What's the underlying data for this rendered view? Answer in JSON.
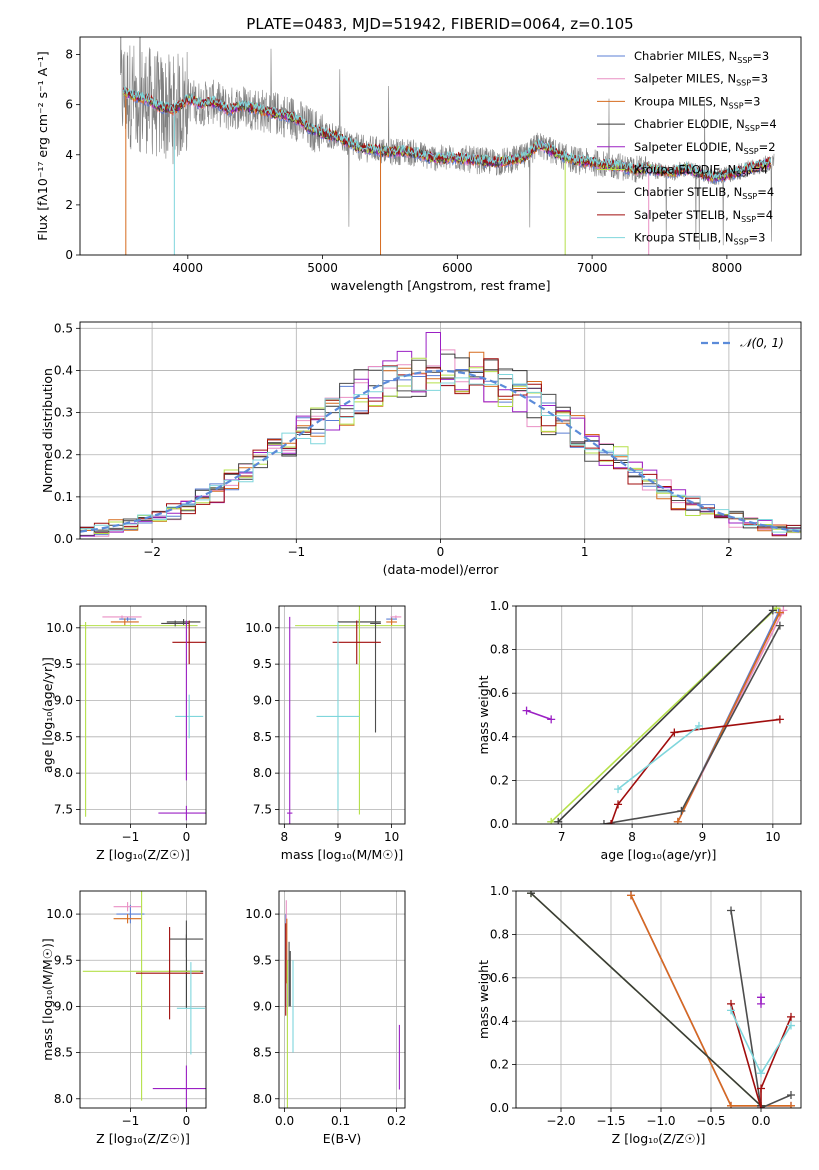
{
  "figure": {
    "title": "PLATE=0483, MJD=51942, FIBERID=0064, z=0.105"
  },
  "series_styles": [
    {
      "name": "Chabrier MILES",
      "nssp": "3",
      "color": "#5b7fd4"
    },
    {
      "name": "Salpeter MILES",
      "nssp": "3",
      "color": "#e98fc4"
    },
    {
      "name": "Kroupa MILES",
      "nssp": "3",
      "color": "#d66b1f"
    },
    {
      "name": "Chabrier ELODIE",
      "nssp": "4",
      "color": "#3a3a3a"
    },
    {
      "name": "Salpeter ELODIE",
      "nssp": "2",
      "color": "#9b20c4"
    },
    {
      "name": "Kroupa ELODIE",
      "nssp": "4",
      "color": "#b5e04a"
    },
    {
      "name": "Chabrier STELIB",
      "nssp": "4",
      "color": "#4d4d4d"
    },
    {
      "name": "Salpeter STELIB",
      "nssp": "4",
      "color": "#a00d0d"
    },
    {
      "name": "Kroupa STELIB",
      "nssp": "3",
      "color": "#7fd6dc"
    }
  ],
  "chart_data": [
    {
      "id": "spectrum",
      "type": "line",
      "xlabel": "wavelength [Angstrom, rest frame]",
      "ylabel": "Flux [fλ10⁻¹⁷ erg cm⁻² s⁻¹ A⁻¹]",
      "xlim": [
        3200,
        8550
      ],
      "ylim": [
        0,
        8.7
      ],
      "xticks": [
        4000,
        5000,
        6000,
        7000,
        8000
      ],
      "yticks": [
        0,
        2,
        4,
        6,
        8
      ],
      "grid": false,
      "legend": "top-right",
      "data_color": "#808080",
      "data_x_range": [
        3500,
        8350
      ],
      "model_shape": {
        "x": [
          3520,
          3600,
          3700,
          3800,
          3900,
          4000,
          4100,
          4200,
          4300,
          4400,
          4500,
          4600,
          4700,
          4800,
          4900,
          5000,
          5100,
          5200,
          5300,
          5400,
          5500,
          5600,
          5700,
          5800,
          5900,
          6000,
          6100,
          6200,
          6300,
          6400,
          6500,
          6600,
          6650,
          6700,
          6800,
          6900,
          7000,
          7100,
          7200,
          7300,
          7400,
          7500,
          7600,
          7700,
          7800,
          7900,
          8000,
          8100,
          8200,
          8330
        ],
        "y": [
          6.5,
          6.35,
          6.2,
          5.9,
          5.8,
          6.2,
          6.05,
          6.1,
          5.8,
          5.95,
          5.85,
          5.7,
          5.6,
          5.45,
          5.05,
          4.85,
          4.75,
          4.45,
          4.25,
          4.2,
          4.1,
          4.15,
          4.05,
          3.9,
          3.85,
          3.9,
          3.8,
          3.75,
          3.7,
          3.8,
          3.9,
          4.4,
          4.3,
          4.15,
          3.9,
          3.75,
          3.7,
          3.6,
          3.55,
          3.4,
          3.45,
          3.35,
          3.3,
          3.45,
          3.25,
          3.1,
          3.2,
          3.35,
          3.5,
          3.7
        ]
      }
    },
    {
      "id": "residuals",
      "type": "histogram",
      "xlabel": "(data-model)/error",
      "ylabel": "Normed distribution",
      "xlim": [
        -2.5,
        2.5
      ],
      "ylim": [
        0,
        0.515
      ],
      "xticks": [
        -2,
        -1,
        0,
        1,
        2
      ],
      "yticks": [
        0.0,
        0.1,
        0.2,
        0.3,
        0.4,
        0.5
      ],
      "grid": true,
      "legend": "top-right",
      "reference_curve": {
        "name": "𝒩(0, 1)",
        "mean": 0,
        "sigma": 1,
        "color": "#5b8bd9"
      },
      "bin_edges_start": -2.5,
      "bin_width": 0.1,
      "base_hist": [
        0.03,
        0.04,
        0.05,
        0.07,
        0.08,
        0.07,
        0.09,
        0.09,
        0.1,
        0.12,
        0.12,
        0.15,
        0.17,
        0.18,
        0.19,
        0.2,
        0.21,
        0.24,
        0.26,
        0.29,
        0.32,
        0.35,
        0.3,
        0.37,
        0.39,
        0.38,
        0.36,
        0.39,
        0.41,
        0.4,
        0.38,
        0.36,
        0.37,
        0.35,
        0.34,
        0.37,
        0.34,
        0.33,
        0.31,
        0.3,
        0.26,
        0.22,
        0.21,
        0.19,
        0.17,
        0.13,
        0.14,
        0.1,
        0.09,
        0.08,
        0.09,
        0.07,
        0.06,
        0.05,
        0.04,
        0.03,
        0.03,
        0.02,
        0.02,
        0.01,
        0.02,
        0.01,
        0.01,
        0.01,
        0.01,
        0.01,
        0.01,
        0.01,
        0.01,
        0.01
      ],
      "peak_bin_value": 0.49
    },
    {
      "id": "age_vs_Z",
      "type": "errorbar",
      "xlabel": "Z [log₁₀(Z/Z☉)]",
      "ylabel": "age  [log₁₀(age/yr)]",
      "xlim": [
        -1.9,
        0.35
      ],
      "ylim": [
        7.3,
        10.3
      ],
      "xticks": [
        -1,
        0
      ],
      "yticks": [
        7.5,
        8.0,
        8.5,
        9.0,
        9.5,
        10.0
      ],
      "grid": true,
      "points": [
        {
          "s": 0,
          "x": -1.05,
          "y": 10.12,
          "dx": 0.15,
          "dy": 0.03
        },
        {
          "s": 1,
          "x": -1.15,
          "y": 10.15,
          "dx": 0.35,
          "dy": 0.02
        },
        {
          "s": 2,
          "x": -1.1,
          "y": 10.08,
          "dx": 0.25,
          "dy": 0.05
        },
        {
          "s": 3,
          "x": -0.05,
          "y": 10.08,
          "dx": 0.3,
          "dy": 0.04
        },
        {
          "s": 4,
          "x": 0.0,
          "y": 7.45,
          "dx": 0.5,
          "dy": 0.1
        },
        {
          "s": 5,
          "x": -1.8,
          "y": 10.03,
          "dx": 2.0,
          "dy": 0.05
        },
        {
          "s": 6,
          "x": -0.2,
          "y": 10.06,
          "dx": 0.25,
          "dy": 0.04
        },
        {
          "s": 7,
          "x": 0.05,
          "y": 9.8,
          "dx": 0.3,
          "dy": 0.3
        },
        {
          "s": 8,
          "x": 0.05,
          "y": 8.78,
          "dx": 0.25,
          "dy": 0.3
        },
        {
          "s": 4,
          "x": 0.0,
          "y": 9.0,
          "dx": 0.0,
          "dy": 1.1
        },
        {
          "s": 5,
          "x": -1.8,
          "y": 8.7,
          "dx": 0.0,
          "dy": 1.3
        }
      ]
    },
    {
      "id": "age_vs_mass",
      "type": "errorbar",
      "xlabel": "mass [log₁₀(M/M☉)]",
      "ylabel": "",
      "xlim": [
        7.9,
        10.25
      ],
      "ylim": [
        7.3,
        10.3
      ],
      "xticks": [
        8,
        9,
        10
      ],
      "yticks": [
        7.5,
        8.0,
        8.5,
        9.0,
        9.5,
        10.0
      ],
      "grid": true,
      "points": [
        {
          "s": 0,
          "x": 10.0,
          "y": 10.12,
          "dx": 0.1,
          "dy": 0.03
        },
        {
          "s": 1,
          "x": 10.08,
          "y": 10.15,
          "dx": 0.1,
          "dy": 0.02
        },
        {
          "s": 2,
          "x": 10.0,
          "y": 10.08,
          "dx": 0.1,
          "dy": 0.05
        },
        {
          "s": 3,
          "x": 9.4,
          "y": 10.08,
          "dx": 0.4,
          "dy": 0.04
        },
        {
          "s": 4,
          "x": 8.1,
          "y": 7.45,
          "dx": 0.05,
          "dy": 2.7
        },
        {
          "s": 5,
          "x": 9.4,
          "y": 10.03,
          "dx": 1.2,
          "dy": 2.6
        },
        {
          "s": 6,
          "x": 9.7,
          "y": 10.06,
          "dx": 0.1,
          "dy": 1.5
        },
        {
          "s": 7,
          "x": 9.35,
          "y": 9.8,
          "dx": 0.45,
          "dy": 0.3
        },
        {
          "s": 8,
          "x": 9.0,
          "y": 8.78,
          "dx": 0.4,
          "dy": 1.3
        }
      ]
    },
    {
      "id": "massweight_vs_age",
      "type": "line",
      "xlabel": "age  [log₁₀(age/yr)]",
      "ylabel": "mass weight",
      "xlim": [
        6.35,
        10.4
      ],
      "ylim": [
        0,
        1
      ],
      "xticks": [
        7,
        8,
        9,
        10
      ],
      "yticks": [
        0.0,
        0.2,
        0.4,
        0.6,
        0.8,
        1.0
      ],
      "grid": true,
      "series": [
        {
          "s": 0,
          "x": [
            8.65,
            10.08
          ],
          "y": [
            0.01,
            0.97
          ]
        },
        {
          "s": 1,
          "x": [
            8.65,
            10.15
          ],
          "y": [
            0.01,
            0.98
          ]
        },
        {
          "s": 2,
          "x": [
            8.65,
            10.1
          ],
          "y": [
            0.01,
            0.97
          ]
        },
        {
          "s": 6,
          "x": [
            7.6,
            8.7,
            10.1
          ],
          "y": [
            0.0,
            0.06,
            0.91
          ]
        },
        {
          "s": 4,
          "x": [
            6.5,
            6.85
          ],
          "y": [
            0.52,
            0.48
          ]
        },
        {
          "s": 5,
          "x": [
            6.85,
            10.05
          ],
          "y": [
            0.01,
            0.99
          ]
        },
        {
          "s": 3,
          "x": [
            6.95,
            10.0
          ],
          "y": [
            0.01,
            0.98
          ]
        },
        {
          "s": 7,
          "x": [
            7.7,
            7.8,
            8.6,
            10.1
          ],
          "y": [
            0.0,
            0.09,
            0.42,
            0.48
          ]
        },
        {
          "s": 8,
          "x": [
            7.8,
            8.95
          ],
          "y": [
            0.16,
            0.45
          ]
        }
      ]
    },
    {
      "id": "mass_vs_Z",
      "type": "errorbar",
      "xlabel": "Z [log₁₀(Z/Z☉)]",
      "ylabel": "mass [log₁₀(M/M☉)]",
      "xlim": [
        -1.9,
        0.35
      ],
      "ylim": [
        7.9,
        10.25
      ],
      "xticks": [
        -1,
        0
      ],
      "yticks": [
        8.0,
        8.5,
        9.0,
        9.5,
        10.0
      ],
      "grid": true,
      "points": [
        {
          "s": 0,
          "x": -1.0,
          "y": 10.0,
          "dx": 0.25,
          "dy": 0.1
        },
        {
          "s": 1,
          "x": -1.05,
          "y": 10.08,
          "dx": 0.25,
          "dy": 0.05
        },
        {
          "s": 2,
          "x": -1.05,
          "y": 9.95,
          "dx": 0.25,
          "dy": 0.05
        },
        {
          "s": 3,
          "x": 0.0,
          "y": 9.38,
          "dx": 0.3,
          "dy": 0.4
        },
        {
          "s": 4,
          "x": 0.0,
          "y": 8.11,
          "dx": 0.6,
          "dy": 0.25
        },
        {
          "s": 5,
          "x": -0.8,
          "y": 9.38,
          "dx": 1.05,
          "dy": 1.4
        },
        {
          "s": 6,
          "x": 0.0,
          "y": 9.73,
          "dx": 0.3,
          "dy": 0.2
        },
        {
          "s": 7,
          "x": -0.3,
          "y": 9.36,
          "dx": 0.6,
          "dy": 0.5
        },
        {
          "s": 8,
          "x": 0.08,
          "y": 8.98,
          "dx": 0.25,
          "dy": 0.5
        }
      ]
    },
    {
      "id": "mass_vs_EBV",
      "type": "errorbar",
      "xlabel": "E(B-V)",
      "ylabel": "",
      "xlim": [
        -0.01,
        0.215
      ],
      "ylim": [
        7.9,
        10.25
      ],
      "xticks": [
        0.0,
        0.1,
        0.2
      ],
      "yticks": [
        8.0,
        8.5,
        9.0,
        9.5,
        10.0
      ],
      "grid": true,
      "points": [
        {
          "s": 0,
          "x": 0.002,
          "y": 9.5,
          "dx": 0.0,
          "dy": 0.5
        },
        {
          "s": 1,
          "x": 0.003,
          "y": 9.9,
          "dx": 0.0,
          "dy": 0.25
        },
        {
          "s": 2,
          "x": 0.004,
          "y": 9.6,
          "dx": 0.0,
          "dy": 0.35
        },
        {
          "s": 3,
          "x": 0.01,
          "y": 9.3,
          "dx": 0.0,
          "dy": 0.3
        },
        {
          "s": 4,
          "x": 0.205,
          "y": 8.45,
          "dx": 0.0,
          "dy": 0.35
        },
        {
          "s": 5,
          "x": 0.005,
          "y": 8.7,
          "dx": 0.0,
          "dy": 0.8
        },
        {
          "s": 6,
          "x": 0.008,
          "y": 9.35,
          "dx": 0.0,
          "dy": 0.35
        },
        {
          "s": 7,
          "x": 0.002,
          "y": 9.4,
          "dx": 0.0,
          "dy": 0.5
        },
        {
          "s": 8,
          "x": 0.015,
          "y": 9.0,
          "dx": 0.0,
          "dy": 0.5
        }
      ]
    },
    {
      "id": "massweight_vs_Z",
      "type": "line",
      "xlabel": "Z [log₁₀(Z/Z☉)]",
      "ylabel": "mass weight",
      "xlim": [
        -2.45,
        0.4
      ],
      "ylim": [
        0,
        1
      ],
      "xticks": [
        -2.0,
        -1.5,
        -1.0,
        -0.5,
        0.0
      ],
      "yticks": [
        0.0,
        0.2,
        0.4,
        0.6,
        0.8,
        1.0
      ],
      "grid": true,
      "series": [
        {
          "s": 0,
          "x": [
            -1.3,
            -0.3,
            0.3
          ],
          "y": [
            0.98,
            0.01,
            0.01
          ]
        },
        {
          "s": 1,
          "x": [
            -1.3,
            -0.3,
            0.3
          ],
          "y": [
            0.98,
            0.01,
            0.01
          ]
        },
        {
          "s": 2,
          "x": [
            -1.3,
            -0.3,
            0.3
          ],
          "y": [
            0.98,
            0.01,
            0.01
          ]
        },
        {
          "s": 6,
          "x": [
            -0.3,
            0.0,
            0.3
          ],
          "y": [
            0.91,
            0.0,
            0.06
          ]
        },
        {
          "s": 4,
          "x": [
            0.0,
            0.0
          ],
          "y": [
            0.48,
            0.51
          ]
        },
        {
          "s": 5,
          "x": [
            -2.3,
            0.0
          ],
          "y": [
            0.99,
            0.01
          ]
        },
        {
          "s": 3,
          "x": [
            -2.3,
            0.0
          ],
          "y": [
            0.99,
            0.01
          ]
        },
        {
          "s": 7,
          "x": [
            -0.3,
            0.0,
            0.0,
            0.3
          ],
          "y": [
            0.48,
            0.0,
            0.09,
            0.42
          ]
        },
        {
          "s": 8,
          "x": [
            -0.3,
            0.0,
            0.3
          ],
          "y": [
            0.45,
            0.16,
            0.38
          ]
        }
      ]
    }
  ]
}
